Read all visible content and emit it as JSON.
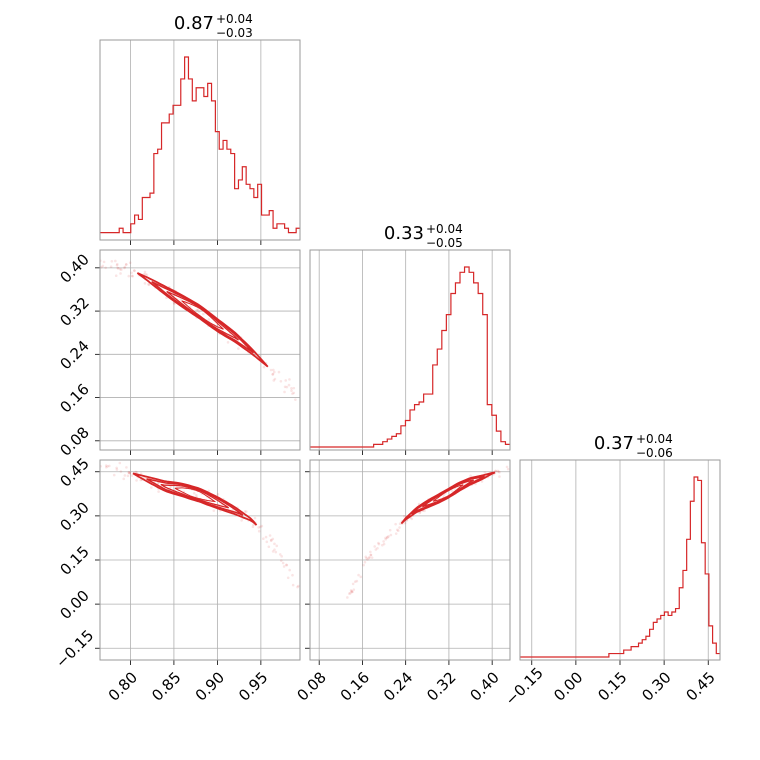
{
  "colors": {
    "series": "#d62728",
    "grid": "#b0b0b0",
    "frame": "#9a9a9a"
  },
  "chart_data": {
    "type": "corner",
    "params": [
      {
        "lim": [
          0.765,
          0.995
        ],
        "ticks": [
          "0.80",
          "0.85",
          "0.90",
          "0.95"
        ],
        "title": {
          "value": "0.87",
          "plus": "+0.04",
          "minus": "−0.03"
        }
      },
      {
        "lim": [
          0.063,
          0.433
        ],
        "ticks": [
          "0.08",
          "0.16",
          "0.24",
          "0.32",
          "0.40"
        ],
        "title": {
          "value": "0.33",
          "plus": "+0.04",
          "minus": "−0.05"
        }
      },
      {
        "lim": [
          -0.19,
          0.49
        ],
        "ticks": [
          "−0.15",
          "0.00",
          "0.15",
          "0.30",
          "0.45"
        ],
        "title": {
          "value": "0.37",
          "plus": "+0.04",
          "minus": "−0.06"
        }
      }
    ],
    "histograms": [
      {
        "edges": [
          0.765,
          0.995
        ],
        "counts": [
          1,
          1,
          1,
          1,
          1,
          2,
          1,
          1,
          3,
          5,
          4,
          9,
          9,
          10,
          19,
          20,
          26,
          26,
          28,
          30,
          30,
          36,
          41,
          36,
          31,
          34,
          34,
          32,
          35,
          31,
          24,
          20,
          22,
          20,
          19,
          11,
          13,
          16,
          12,
          11,
          9,
          12,
          5,
          5,
          6,
          2,
          3,
          3,
          2,
          1,
          1,
          2
        ]
      },
      {
        "edges": [
          0.063,
          0.433
        ],
        "counts": [
          0,
          0,
          0,
          0,
          0,
          0,
          0,
          0,
          0,
          0,
          0,
          0,
          0,
          0,
          1,
          1,
          2,
          3,
          4,
          5,
          8,
          10,
          14,
          16,
          17,
          20,
          20,
          31,
          37,
          44,
          50,
          58,
          62,
          66,
          68,
          66,
          62,
          58,
          50,
          16,
          12,
          6,
          2,
          1
        ]
      },
      {
        "edges": [
          -0.19,
          0.49
        ],
        "counts": [
          0,
          0,
          0,
          0,
          0,
          0,
          0,
          0,
          0,
          0,
          0,
          0,
          0,
          0,
          0,
          0,
          0,
          0,
          0,
          0,
          0,
          0,
          0,
          0,
          1,
          1,
          1,
          1,
          2,
          2,
          3,
          3,
          4,
          5,
          6,
          8,
          10,
          11,
          12,
          13,
          12,
          13,
          14,
          20,
          25,
          34,
          45,
          52,
          51,
          33,
          24,
          9,
          4,
          1
        ]
      }
    ],
    "pairs": [
      {
        "x": 0,
        "y": 1,
        "ridge": [
          [
            0.765,
            0.408
          ],
          [
            0.8,
            0.398
          ],
          [
            0.82,
            0.379
          ],
          [
            0.84,
            0.358
          ],
          [
            0.86,
            0.338
          ],
          [
            0.88,
            0.318
          ],
          [
            0.9,
            0.294
          ],
          [
            0.92,
            0.272
          ],
          [
            0.94,
            0.245
          ],
          [
            0.96,
            0.214
          ],
          [
            0.97,
            0.196
          ],
          [
            0.99,
            0.17
          ]
        ],
        "core": [
          0.808,
          0.958
        ],
        "width": 0.024
      },
      {
        "x": 0,
        "y": 2,
        "ridge": [
          [
            0.765,
            0.478
          ],
          [
            0.8,
            0.448
          ],
          [
            0.82,
            0.424
          ],
          [
            0.84,
            0.401
          ],
          [
            0.86,
            0.388
          ],
          [
            0.88,
            0.37
          ],
          [
            0.9,
            0.345
          ],
          [
            0.92,
            0.318
          ],
          [
            0.94,
            0.285
          ],
          [
            0.96,
            0.22
          ],
          [
            0.98,
            0.13
          ],
          [
            0.995,
            0.03
          ]
        ],
        "core": [
          0.803,
          0.945
        ],
        "width": 0.045
      },
      {
        "x": 1,
        "y": 2,
        "ridge": [
          [
            0.13,
            0.01
          ],
          [
            0.15,
            0.08
          ],
          [
            0.17,
            0.16
          ],
          [
            0.2,
            0.22
          ],
          [
            0.22,
            0.25
          ],
          [
            0.24,
            0.29
          ],
          [
            0.26,
            0.32
          ],
          [
            0.28,
            0.34
          ],
          [
            0.3,
            0.358
          ],
          [
            0.32,
            0.378
          ],
          [
            0.34,
            0.4
          ],
          [
            0.36,
            0.418
          ],
          [
            0.38,
            0.43
          ],
          [
            0.4,
            0.445
          ],
          [
            0.43,
            0.46
          ]
        ],
        "core": [
          0.232,
          0.405
        ],
        "width": 0.03
      }
    ]
  }
}
